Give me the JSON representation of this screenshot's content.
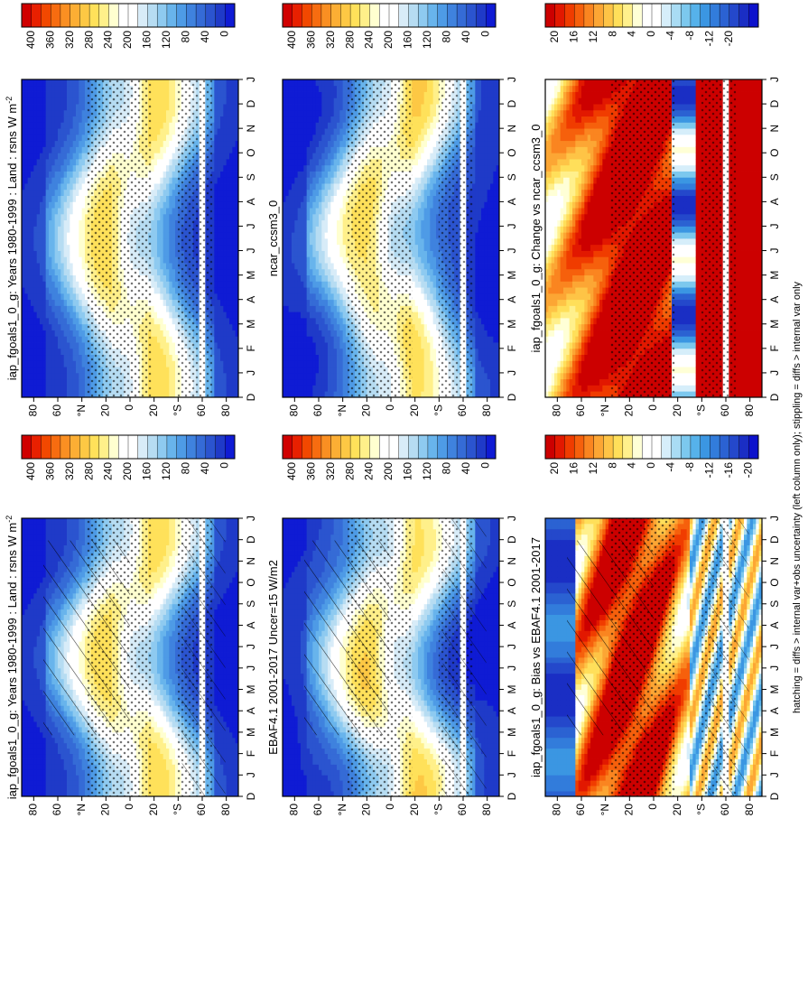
{
  "figure": {
    "footnote": "hatching = diffs > internal var+obs uncertainty (left column only); stippling = diffs > internal var only",
    "degree_symbol": "°",
    "lat_labels": [
      "80",
      "60",
      "°N",
      "20",
      "0",
      "20",
      "°S",
      "60",
      "80"
    ],
    "month_labels": [
      "D",
      "J",
      "F",
      "M",
      "A",
      "M",
      "J",
      "J",
      "A",
      "S",
      "O",
      "N",
      "D",
      "J"
    ]
  },
  "colorbars": {
    "abs": {
      "labels": [
        "400",
        "360",
        "320",
        "280",
        "240",
        "200",
        "160",
        "120",
        "80",
        "40",
        "0"
      ],
      "colors": [
        "#d00000",
        "#e82000",
        "#f24800",
        "#f76c10",
        "#fa8f22",
        "#fcae34",
        "#fdc844",
        "#ffe15a",
        "#fff08a",
        "#ffffd0",
        "#ffffff",
        "#ffffff",
        "#d8ecf8",
        "#b6dcf2",
        "#8ecaf0",
        "#68b4ec",
        "#4e9be6",
        "#3f82de",
        "#356bd6",
        "#2b54cf",
        "#1f3ac8",
        "#0f1bd4"
      ]
    },
    "diff": {
      "labels": [
        "20",
        "16",
        "12",
        "8",
        "4",
        "0",
        "-4",
        "-8",
        "-12",
        "-16",
        "-20"
      ],
      "colors": [
        "#cc0000",
        "#e21800",
        "#f03c00",
        "#f6600c",
        "#fa8520",
        "#fca634",
        "#fec446",
        "#ffdf5a",
        "#fff08c",
        "#ffffd6",
        "#ffffff",
        "#ffffff",
        "#d6eefa",
        "#a9dcf4",
        "#7cc8ee",
        "#56b2ea",
        "#3b96e2",
        "#327cdb",
        "#2b62d2",
        "#2448cb",
        "#1a2ec4",
        "#0d12cc"
      ]
    },
    "diff_right": {
      "labels": [
        "20",
        "16",
        "12",
        "8",
        "4",
        "0",
        "-4",
        "-8",
        "-12",
        "-20"
      ]
    }
  },
  "chart_data": [
    {
      "id": "model",
      "type": "heatmap",
      "title": "iap_fgoals1_0_g: Years 1980-1999 : Land : rsns W m",
      "title_superscript": "-2",
      "x": [
        "D",
        "J",
        "F",
        "M",
        "A",
        "M",
        "J",
        "J",
        "A",
        "S",
        "O",
        "N",
        "D",
        "J"
      ],
      "y_range": [
        -90,
        90
      ],
      "value_range": [
        0,
        400
      ],
      "field": "absolute",
      "hatching": true,
      "stippling": true
    },
    {
      "id": "model_right",
      "type": "heatmap",
      "title": "iap_fgoals1_0_g: Years 1980-1999 : Land : rsns W m",
      "title_superscript": "-2",
      "x": [
        "D",
        "J",
        "F",
        "M",
        "A",
        "M",
        "J",
        "J",
        "A",
        "S",
        "O",
        "N",
        "D",
        "J"
      ],
      "y_range": [
        -90,
        90
      ],
      "value_range": [
        0,
        400
      ],
      "field": "absolute",
      "hatching": false,
      "stippling": true
    },
    {
      "id": "obs",
      "type": "heatmap",
      "title": "EBAF4.1 2001-2017 Uncer=15 W/m2",
      "x": [
        "D",
        "J",
        "F",
        "M",
        "A",
        "M",
        "J",
        "J",
        "A",
        "S",
        "O",
        "N",
        "D",
        "J"
      ],
      "y_range": [
        -90,
        90
      ],
      "value_range": [
        0,
        400
      ],
      "field": "absolute",
      "hatching": true,
      "stippling": true
    },
    {
      "id": "ref",
      "type": "heatmap",
      "title": "ncar_ccsm3_0",
      "x": [
        "D",
        "J",
        "F",
        "M",
        "A",
        "M",
        "J",
        "J",
        "A",
        "S",
        "O",
        "N",
        "D",
        "J"
      ],
      "y_range": [
        -90,
        90
      ],
      "value_range": [
        0,
        400
      ],
      "field": "absolute",
      "hatching": false,
      "stippling": true
    },
    {
      "id": "bias",
      "type": "heatmap",
      "title": "iap_fgoals1_0_g: Bias vs EBAF4.1 2001-2017",
      "x": [
        "D",
        "J",
        "F",
        "M",
        "A",
        "M",
        "J",
        "J",
        "A",
        "S",
        "O",
        "N",
        "D",
        "J"
      ],
      "y_range": [
        -90,
        90
      ],
      "value_range": [
        -20,
        20
      ],
      "field": "bias",
      "hatching": true,
      "stippling": true
    },
    {
      "id": "change",
      "type": "heatmap",
      "title": "iap_fgoals1_0_g: Change vs ncar_ccsm3_0",
      "x": [
        "D",
        "J",
        "F",
        "M",
        "A",
        "M",
        "J",
        "J",
        "A",
        "S",
        "O",
        "N",
        "D",
        "J"
      ],
      "y_range": [
        -90,
        90
      ],
      "value_range": [
        -20,
        20
      ],
      "field": "change",
      "hatching": false,
      "stippling": true
    }
  ]
}
